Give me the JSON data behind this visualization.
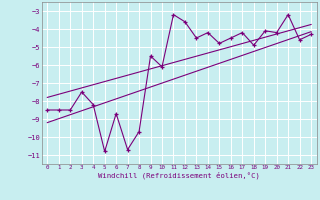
{
  "xlabel": "Windchill (Refroidissement éolien,°C)",
  "x_data": [
    0,
    1,
    2,
    3,
    4,
    5,
    6,
    7,
    8,
    9,
    10,
    11,
    12,
    13,
    14,
    15,
    16,
    17,
    18,
    19,
    20,
    21,
    22,
    23
  ],
  "y_data": [
    -8.5,
    -8.5,
    -8.5,
    -7.5,
    -8.2,
    -10.8,
    -8.7,
    -10.7,
    -9.7,
    -5.5,
    -6.1,
    -3.2,
    -3.6,
    -4.5,
    -4.2,
    -4.8,
    -4.5,
    -4.2,
    -4.9,
    -4.1,
    -4.2,
    -3.2,
    -4.6,
    -4.3
  ],
  "line_color": "#7b007b",
  "bg_color": "#c8eef0",
  "grid_color": "#b0dde0",
  "ylim": [
    -11.5,
    -2.5
  ],
  "xlim": [
    -0.5,
    23.5
  ],
  "yticks": [
    -11,
    -10,
    -9,
    -8,
    -7,
    -6,
    -5,
    -4,
    -3
  ],
  "xticks": [
    0,
    1,
    2,
    3,
    4,
    5,
    6,
    7,
    8,
    9,
    10,
    11,
    12,
    13,
    14,
    15,
    16,
    17,
    18,
    19,
    20,
    21,
    22,
    23
  ],
  "trend_line1_y": [
    -9.2,
    -4.15
  ],
  "trend_line2_y": [
    -7.8,
    -3.75
  ],
  "trend_x": [
    0,
    23
  ]
}
